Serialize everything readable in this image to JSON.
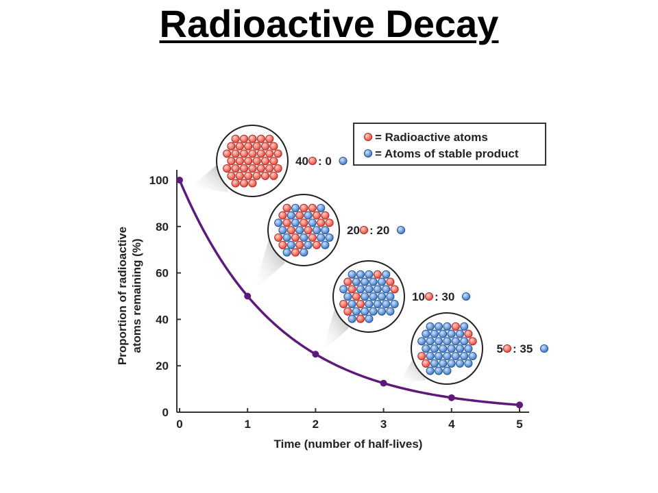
{
  "page": {
    "title": "Radioactive Decay"
  },
  "chart_data": {
    "type": "line",
    "xlabel": "Time (number of half-lives)",
    "ylabel_line1": "Proportion of radioactive",
    "ylabel_line2": "atoms remaining (%)",
    "xlim": [
      0,
      5
    ],
    "ylim": [
      0,
      100
    ],
    "x_ticks": [
      0,
      1,
      2,
      3,
      4,
      5
    ],
    "y_ticks": [
      0,
      20,
      40,
      60,
      80,
      100
    ],
    "series": [
      {
        "x": [
          0,
          1,
          2,
          3,
          4,
          5
        ],
        "y": [
          100,
          50,
          25,
          12.5,
          6.25,
          3.125
        ]
      }
    ],
    "line_color": "#5e1a7a",
    "grid": false,
    "legend": {
      "position": "top-right",
      "items": [
        {
          "label": "= Radioactive atoms",
          "color": "#e8372c"
        },
        {
          "label": "= Atoms of stable product",
          "color": "#2f6fc0"
        }
      ]
    },
    "annotations": [
      {
        "at_x": 0,
        "radioactive": 40,
        "stable": 0,
        "label_left": "40",
        "label_right": ": 0"
      },
      {
        "at_x": 1,
        "radioactive": 20,
        "stable": 20,
        "label_left": "20",
        "label_right": ": 20"
      },
      {
        "at_x": 2,
        "radioactive": 10,
        "stable": 30,
        "label_left": "10",
        "label_right": ": 30"
      },
      {
        "at_x": 3,
        "radioactive": 5,
        "stable": 35,
        "label_left": "5",
        "label_right": ": 35"
      }
    ]
  }
}
